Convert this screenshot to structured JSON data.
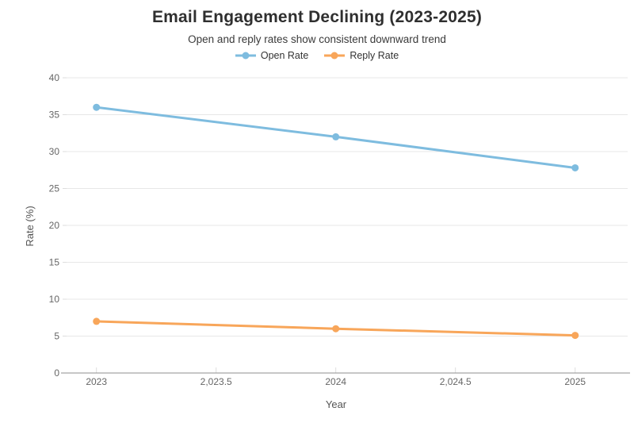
{
  "header": {
    "title": "Email Engagement Declining (2023-2025)",
    "subtitle": "Open and reply rates show consistent downward trend"
  },
  "chart_data": {
    "type": "line",
    "title": "Email Engagement Declining (2023-2025)",
    "subtitle": "Open and reply rates show consistent downward trend",
    "xlabel": "Year",
    "ylabel": "Rate (%)",
    "x": [
      2023,
      2024,
      2025
    ],
    "series": [
      {
        "name": "Open Rate",
        "color": "#7ebcdf",
        "values": [
          36,
          32,
          27.8
        ]
      },
      {
        "name": "Reply Rate",
        "color": "#f8a65a",
        "values": [
          7,
          6,
          5.1
        ]
      }
    ],
    "x_ticks": [
      {
        "value": 2023,
        "label": "2023"
      },
      {
        "value": 2023.5,
        "label": "2,023.5"
      },
      {
        "value": 2024,
        "label": "2024"
      },
      {
        "value": 2024.5,
        "label": "2,024.5"
      },
      {
        "value": 2025,
        "label": "2025"
      }
    ],
    "y_ticks": [
      0,
      5,
      10,
      15,
      20,
      25,
      30,
      35,
      40
    ],
    "xlim": [
      2022.8785,
      2025.2128
    ],
    "ylim": [
      0,
      40
    ],
    "grid": true,
    "legend_position": "top",
    "style": {
      "grid_color": "#e7e7e7",
      "axis_line_color": "#8f8f8f",
      "tick_mark_color": "#dddddd",
      "tick_label_color": "#666666",
      "axis_title_color": "#555555"
    }
  }
}
